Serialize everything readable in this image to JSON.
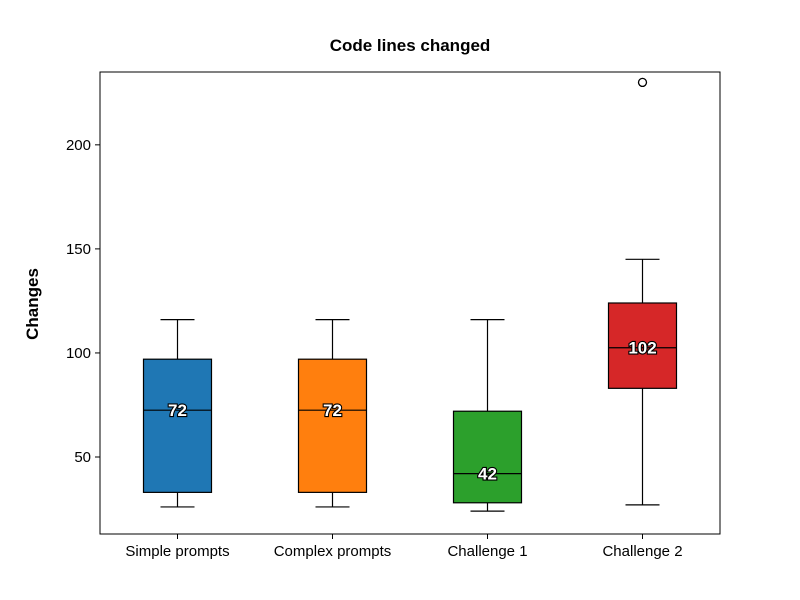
{
  "chart_data": {
    "type": "box",
    "title": "Code lines changed",
    "xlabel": "",
    "ylabel": "Changes",
    "ylim": [
      13,
      235
    ],
    "yticks": [
      50,
      100,
      150,
      200
    ],
    "grid": false,
    "categories": [
      "Simple prompts",
      "Complex prompts",
      "Challenge 1",
      "Challenge 2"
    ],
    "boxes": [
      {
        "name": "Simple prompts",
        "whisker_low": 26,
        "q1": 33,
        "median": 72.5,
        "q3": 97,
        "whisker_high": 116,
        "median_label": "72",
        "color": "#1f77b4",
        "outliers": []
      },
      {
        "name": "Complex prompts",
        "whisker_low": 26,
        "q1": 33,
        "median": 72.5,
        "q3": 97,
        "whisker_high": 116,
        "median_label": "72",
        "color": "#ff7f0e",
        "outliers": []
      },
      {
        "name": "Challenge 1",
        "whisker_low": 24,
        "q1": 28,
        "median": 42,
        "q3": 72,
        "whisker_high": 116,
        "median_label": "42",
        "color": "#2ca02c",
        "outliers": []
      },
      {
        "name": "Challenge 2",
        "whisker_low": 27,
        "q1": 83,
        "median": 102.5,
        "q3": 124,
        "whisker_high": 145,
        "median_label": "102",
        "color": "#d62728",
        "outliers": [
          230
        ]
      }
    ]
  }
}
